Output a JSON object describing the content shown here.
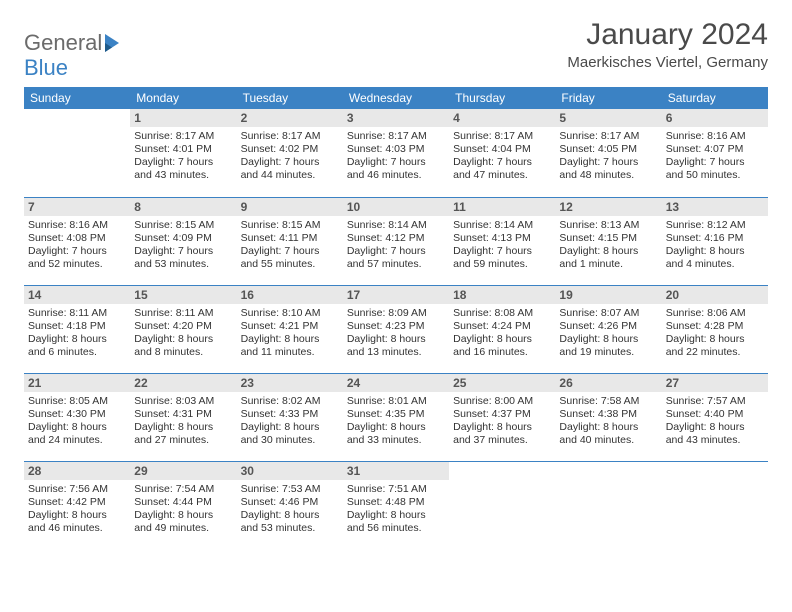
{
  "logo": {
    "text1": "General",
    "text2": "Blue"
  },
  "title": "January 2024",
  "location": "Maerkisches Viertel, Germany",
  "colors": {
    "header_bg": "#3b82c4",
    "header_fg": "#ffffff",
    "daynum_bg": "#e8e8e8",
    "rule": "#3b82c4"
  },
  "day_names": [
    "Sunday",
    "Monday",
    "Tuesday",
    "Wednesday",
    "Thursday",
    "Friday",
    "Saturday"
  ],
  "weeks": [
    [
      null,
      {
        "n": "1",
        "sr": "Sunrise: 8:17 AM",
        "ss": "Sunset: 4:01 PM",
        "dl": "Daylight: 7 hours and 43 minutes."
      },
      {
        "n": "2",
        "sr": "Sunrise: 8:17 AM",
        "ss": "Sunset: 4:02 PM",
        "dl": "Daylight: 7 hours and 44 minutes."
      },
      {
        "n": "3",
        "sr": "Sunrise: 8:17 AM",
        "ss": "Sunset: 4:03 PM",
        "dl": "Daylight: 7 hours and 46 minutes."
      },
      {
        "n": "4",
        "sr": "Sunrise: 8:17 AM",
        "ss": "Sunset: 4:04 PM",
        "dl": "Daylight: 7 hours and 47 minutes."
      },
      {
        "n": "5",
        "sr": "Sunrise: 8:17 AM",
        "ss": "Sunset: 4:05 PM",
        "dl": "Daylight: 7 hours and 48 minutes."
      },
      {
        "n": "6",
        "sr": "Sunrise: 8:16 AM",
        "ss": "Sunset: 4:07 PM",
        "dl": "Daylight: 7 hours and 50 minutes."
      }
    ],
    [
      {
        "n": "7",
        "sr": "Sunrise: 8:16 AM",
        "ss": "Sunset: 4:08 PM",
        "dl": "Daylight: 7 hours and 52 minutes."
      },
      {
        "n": "8",
        "sr": "Sunrise: 8:15 AM",
        "ss": "Sunset: 4:09 PM",
        "dl": "Daylight: 7 hours and 53 minutes."
      },
      {
        "n": "9",
        "sr": "Sunrise: 8:15 AM",
        "ss": "Sunset: 4:11 PM",
        "dl": "Daylight: 7 hours and 55 minutes."
      },
      {
        "n": "10",
        "sr": "Sunrise: 8:14 AM",
        "ss": "Sunset: 4:12 PM",
        "dl": "Daylight: 7 hours and 57 minutes."
      },
      {
        "n": "11",
        "sr": "Sunrise: 8:14 AM",
        "ss": "Sunset: 4:13 PM",
        "dl": "Daylight: 7 hours and 59 minutes."
      },
      {
        "n": "12",
        "sr": "Sunrise: 8:13 AM",
        "ss": "Sunset: 4:15 PM",
        "dl": "Daylight: 8 hours and 1 minute."
      },
      {
        "n": "13",
        "sr": "Sunrise: 8:12 AM",
        "ss": "Sunset: 4:16 PM",
        "dl": "Daylight: 8 hours and 4 minutes."
      }
    ],
    [
      {
        "n": "14",
        "sr": "Sunrise: 8:11 AM",
        "ss": "Sunset: 4:18 PM",
        "dl": "Daylight: 8 hours and 6 minutes."
      },
      {
        "n": "15",
        "sr": "Sunrise: 8:11 AM",
        "ss": "Sunset: 4:20 PM",
        "dl": "Daylight: 8 hours and 8 minutes."
      },
      {
        "n": "16",
        "sr": "Sunrise: 8:10 AM",
        "ss": "Sunset: 4:21 PM",
        "dl": "Daylight: 8 hours and 11 minutes."
      },
      {
        "n": "17",
        "sr": "Sunrise: 8:09 AM",
        "ss": "Sunset: 4:23 PM",
        "dl": "Daylight: 8 hours and 13 minutes."
      },
      {
        "n": "18",
        "sr": "Sunrise: 8:08 AM",
        "ss": "Sunset: 4:24 PM",
        "dl": "Daylight: 8 hours and 16 minutes."
      },
      {
        "n": "19",
        "sr": "Sunrise: 8:07 AM",
        "ss": "Sunset: 4:26 PM",
        "dl": "Daylight: 8 hours and 19 minutes."
      },
      {
        "n": "20",
        "sr": "Sunrise: 8:06 AM",
        "ss": "Sunset: 4:28 PM",
        "dl": "Daylight: 8 hours and 22 minutes."
      }
    ],
    [
      {
        "n": "21",
        "sr": "Sunrise: 8:05 AM",
        "ss": "Sunset: 4:30 PM",
        "dl": "Daylight: 8 hours and 24 minutes."
      },
      {
        "n": "22",
        "sr": "Sunrise: 8:03 AM",
        "ss": "Sunset: 4:31 PM",
        "dl": "Daylight: 8 hours and 27 minutes."
      },
      {
        "n": "23",
        "sr": "Sunrise: 8:02 AM",
        "ss": "Sunset: 4:33 PM",
        "dl": "Daylight: 8 hours and 30 minutes."
      },
      {
        "n": "24",
        "sr": "Sunrise: 8:01 AM",
        "ss": "Sunset: 4:35 PM",
        "dl": "Daylight: 8 hours and 33 minutes."
      },
      {
        "n": "25",
        "sr": "Sunrise: 8:00 AM",
        "ss": "Sunset: 4:37 PM",
        "dl": "Daylight: 8 hours and 37 minutes."
      },
      {
        "n": "26",
        "sr": "Sunrise: 7:58 AM",
        "ss": "Sunset: 4:38 PM",
        "dl": "Daylight: 8 hours and 40 minutes."
      },
      {
        "n": "27",
        "sr": "Sunrise: 7:57 AM",
        "ss": "Sunset: 4:40 PM",
        "dl": "Daylight: 8 hours and 43 minutes."
      }
    ],
    [
      {
        "n": "28",
        "sr": "Sunrise: 7:56 AM",
        "ss": "Sunset: 4:42 PM",
        "dl": "Daylight: 8 hours and 46 minutes."
      },
      {
        "n": "29",
        "sr": "Sunrise: 7:54 AM",
        "ss": "Sunset: 4:44 PM",
        "dl": "Daylight: 8 hours and 49 minutes."
      },
      {
        "n": "30",
        "sr": "Sunrise: 7:53 AM",
        "ss": "Sunset: 4:46 PM",
        "dl": "Daylight: 8 hours and 53 minutes."
      },
      {
        "n": "31",
        "sr": "Sunrise: 7:51 AM",
        "ss": "Sunset: 4:48 PM",
        "dl": "Daylight: 8 hours and 56 minutes."
      },
      null,
      null,
      null
    ]
  ]
}
